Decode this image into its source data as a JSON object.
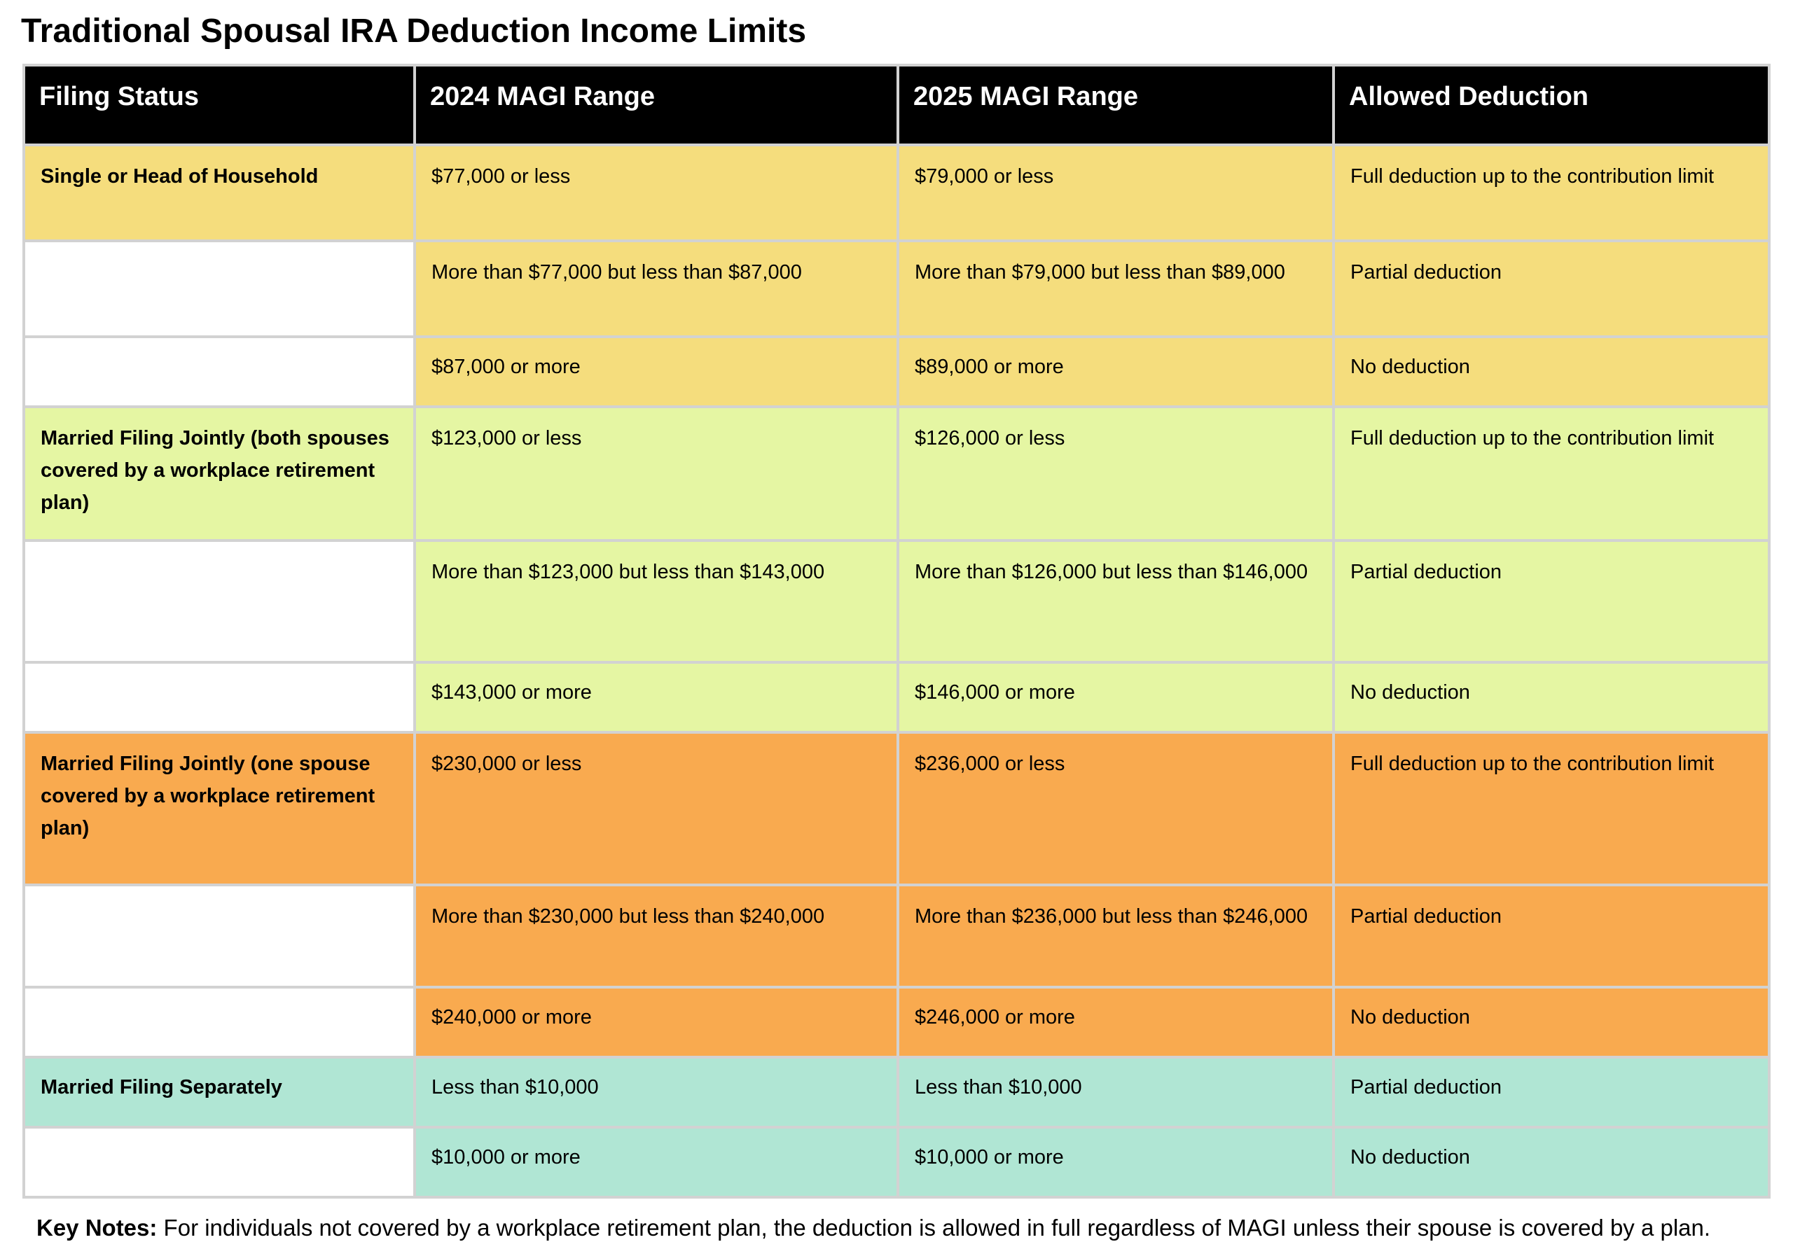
{
  "title": "Traditional Spousal IRA Deduction Income Limits",
  "colors": {
    "header_background": "#000000",
    "header_text": "#ffffff",
    "single_group": "#f5dd7d",
    "joint_both_group": "#e5f6a3",
    "joint_one_group": "#f9aa4f",
    "separately_group": "#b0e6d4",
    "empty_status_cell": "#ffffff",
    "grid_line": "#d2d2d2"
  },
  "table": {
    "headers": [
      "Filing Status",
      "2024 MAGI Range",
      "2025 MAGI Range",
      "Allowed Deduction"
    ],
    "rows": [
      {
        "group": "single_group",
        "filing_status": "Single or Head of Household",
        "range_2024": "$77,000 or less",
        "range_2025": "$79,000 or less",
        "deduction": "Full deduction up to the contribution limit"
      },
      {
        "group": "single_group",
        "filing_status": "",
        "range_2024": "More than $77,000 but less than $87,000",
        "range_2025": "More than $79,000 but less than $89,000",
        "deduction": "Partial deduction"
      },
      {
        "group": "single_group",
        "filing_status": "",
        "range_2024": "$87,000 or more",
        "range_2025": "$89,000 or more",
        "deduction": "No deduction"
      },
      {
        "group": "joint_both_group",
        "filing_status": "Married Filing Jointly (both spouses covered by a workplace retirement plan)",
        "range_2024": "$123,000 or less",
        "range_2025": "$126,000 or less",
        "deduction": "Full deduction up to the contribution limit"
      },
      {
        "group": "joint_both_group",
        "filing_status": "",
        "range_2024": "More than $123,000 but less than $143,000",
        "range_2025": "More than $126,000 but less than $146,000",
        "deduction": "Partial deduction"
      },
      {
        "group": "joint_both_group",
        "filing_status": "",
        "range_2024": "$143,000 or more",
        "range_2025": "$146,000 or more",
        "deduction": "No deduction"
      },
      {
        "group": "joint_one_group",
        "filing_status": "Married Filing Jointly (one spouse covered by a workplace retirement plan)",
        "range_2024": "$230,000 or less",
        "range_2025": "$236,000 or less",
        "deduction": "Full deduction up to the contribution limit"
      },
      {
        "group": "joint_one_group",
        "filing_status": "",
        "range_2024": "More than $230,000 but less than $240,000",
        "range_2025": "More than $236,000 but less than $246,000",
        "deduction": "Partial deduction"
      },
      {
        "group": "joint_one_group",
        "filing_status": "",
        "range_2024": "$240,000 or more",
        "range_2025": "$246,000 or more",
        "deduction": "No deduction"
      },
      {
        "group": "separately_group",
        "filing_status": "Married Filing Separately",
        "range_2024": "Less than $10,000",
        "range_2025": "Less than $10,000",
        "deduction": "Partial deduction"
      },
      {
        "group": "separately_group",
        "filing_status": "",
        "range_2024": "$10,000 or more",
        "range_2025": "$10,000 or more",
        "deduction": "No deduction"
      }
    ]
  },
  "key_notes": {
    "label": "Key Notes:",
    "text": " For individuals not covered by a workplace retirement plan, the deduction is allowed in full regardless of MAGI unless their spouse is covered by a plan."
  }
}
